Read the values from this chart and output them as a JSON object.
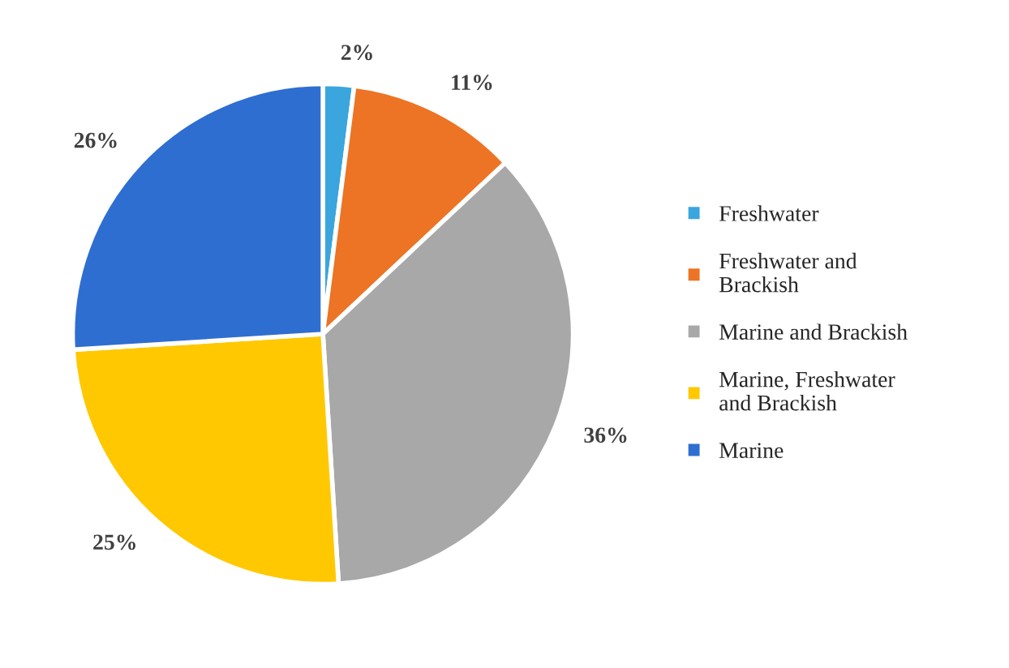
{
  "chart_data": {
    "type": "pie",
    "categories": [
      "Freshwater",
      "Freshwater and\nBrackish",
      "Marine and Brackish",
      "Marine, Freshwater\nand Brackish",
      "Marine"
    ],
    "values": [
      2,
      11,
      36,
      25,
      26
    ],
    "colors": [
      "#3aa6dd",
      "#ec7424",
      "#a8a8a8",
      "#ffc800",
      "#2e6ed0"
    ],
    "value_labels": [
      "2%",
      "11%",
      "36%",
      "25%",
      "26%"
    ],
    "legend": "right"
  }
}
